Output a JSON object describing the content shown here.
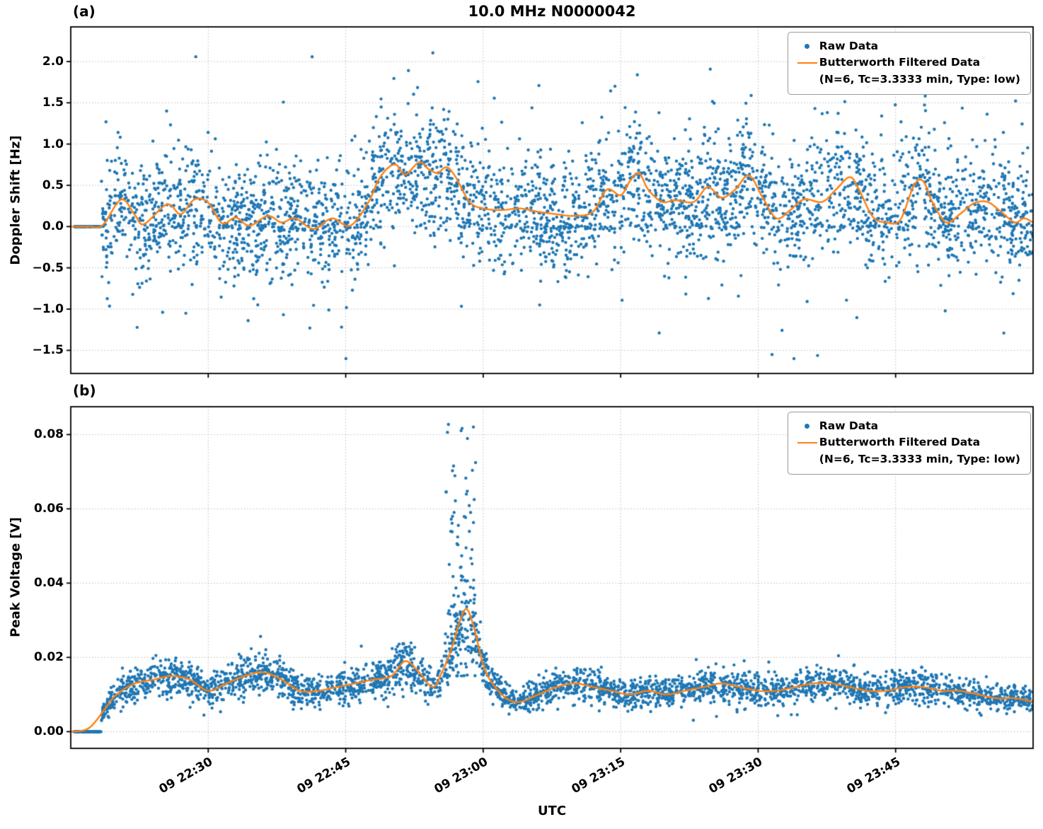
{
  "chart_data": [
    {
      "panel_label": "(a)",
      "type": "scatter+line",
      "title": "10.0 MHz N0000042",
      "ylabel": "Doppler Shift [Hz]",
      "xlabel": "",
      "grid": {
        "visible": true,
        "style": "dotted",
        "color": "#b8b8b8"
      },
      "x_axis": {
        "unit": "UTC time (day 09), minutes after 22:15",
        "xlim": [
          0,
          105
        ],
        "show_tick_labels": false,
        "ticks": [
          {
            "t": 15,
            "label": "09 22:30"
          },
          {
            "t": 30,
            "label": "09 22:45"
          },
          {
            "t": 45,
            "label": "09 23:00"
          },
          {
            "t": 60,
            "label": "09 23:15"
          },
          {
            "t": 75,
            "label": "09 23:30"
          },
          {
            "t": 90,
            "label": "09 23:45"
          }
        ]
      },
      "y_axis": {
        "ylim": [
          -1.78,
          2.42
        ],
        "ticks": [
          {
            "v": 2.0,
            "label": "2.0"
          },
          {
            "v": 1.5,
            "label": "1.5"
          },
          {
            "v": 1.0,
            "label": "1.0"
          },
          {
            "v": 0.5,
            "label": "0.5"
          },
          {
            "v": 0.0,
            "label": "0.0"
          },
          {
            "v": -0.5,
            "label": "−0.5"
          },
          {
            "v": -1.0,
            "label": "−1.0"
          },
          {
            "v": -1.5,
            "label": "−1.5"
          }
        ]
      },
      "legend": {
        "position": "upper right",
        "raw_label": "Raw Data",
        "filtered_label": "Butterworth Filtered Data",
        "filtered_params": "(N=6, Tc=3.3333 min, Type: low)"
      },
      "series": [
        {
          "name": "Raw Data",
          "type": "scatter",
          "color": "#1f77b4",
          "marker": "dot",
          "summary": "~5000 noisy Doppler readings scattered roughly ±0.5–1.5 Hz around the filtered curve; a flat run of exact zeros at the very start (22:15–22:18 UTC); extremes reach about +2.35 Hz and −1.55 Hz",
          "generator": {
            "mode": "band",
            "seed": 42,
            "n": 3800,
            "t_range": [
              3.3,
              105
            ],
            "sigma": 0.34,
            "outlier_frac": 0.1,
            "outlier_sigma": 0.72,
            "zero_frac": 0.05,
            "clip": [
              -1.6,
              2.36
            ],
            "zero_run": {
              "t_range": [
                0.3,
                3.3
              ],
              "n": 80,
              "value": 0.0
            }
          }
        },
        {
          "name": "Butterworth Filtered Data (N=6, Tc=3.3333 min, Type: low)",
          "type": "line",
          "color": "#ff7f0e",
          "width": 2.4,
          "points": [
            [
              0,
              0.0
            ],
            [
              2,
              0.0
            ],
            [
              3.5,
              0.02
            ],
            [
              5.5,
              0.33
            ],
            [
              7,
              0.14
            ],
            [
              8,
              0.03
            ],
            [
              10.5,
              0.27
            ],
            [
              12,
              0.15
            ],
            [
              13.5,
              0.33
            ],
            [
              15,
              0.29
            ],
            [
              16.5,
              0.04
            ],
            [
              18,
              0.11
            ],
            [
              19.5,
              0.01
            ],
            [
              21.5,
              0.13
            ],
            [
              23,
              0.05
            ],
            [
              24.5,
              0.1
            ],
            [
              26.5,
              -0.03
            ],
            [
              28.5,
              0.1
            ],
            [
              30.5,
              0.01
            ],
            [
              32.5,
              0.3
            ],
            [
              33.5,
              0.55
            ],
            [
              34.5,
              0.7
            ],
            [
              35.5,
              0.75
            ],
            [
              36.5,
              0.63
            ],
            [
              38,
              0.78
            ],
            [
              39,
              0.7
            ],
            [
              40,
              0.65
            ],
            [
              41,
              0.72
            ],
            [
              42,
              0.6
            ],
            [
              43.5,
              0.3
            ],
            [
              45,
              0.22
            ],
            [
              47,
              0.2
            ],
            [
              49,
              0.22
            ],
            [
              51,
              0.18
            ],
            [
              53,
              0.15
            ],
            [
              55,
              0.13
            ],
            [
              57,
              0.18
            ],
            [
              58.5,
              0.45
            ],
            [
              60,
              0.38
            ],
            [
              61,
              0.55
            ],
            [
              62,
              0.65
            ],
            [
              63,
              0.45
            ],
            [
              64.5,
              0.3
            ],
            [
              66,
              0.32
            ],
            [
              68,
              0.3
            ],
            [
              69.5,
              0.48
            ],
            [
              71,
              0.35
            ],
            [
              72.5,
              0.45
            ],
            [
              74,
              0.62
            ],
            [
              75.5,
              0.35
            ],
            [
              77,
              0.1
            ],
            [
              78.5,
              0.2
            ],
            [
              80,
              0.33
            ],
            [
              82,
              0.3
            ],
            [
              83.5,
              0.45
            ],
            [
              85,
              0.6
            ],
            [
              86,
              0.45
            ],
            [
              87.5,
              0.12
            ],
            [
              89,
              0.05
            ],
            [
              90.5,
              0.08
            ],
            [
              92,
              0.5
            ],
            [
              93,
              0.55
            ],
            [
              94,
              0.3
            ],
            [
              95.5,
              0.05
            ],
            [
              97,
              0.15
            ],
            [
              98.5,
              0.28
            ],
            [
              100,
              0.3
            ],
            [
              101.5,
              0.18
            ],
            [
              103,
              0.05
            ],
            [
              104,
              0.1
            ],
            [
              105,
              0.05
            ]
          ]
        }
      ]
    },
    {
      "panel_label": "(b)",
      "type": "scatter+line",
      "title": "",
      "ylabel": "Peak Voltage [V]",
      "xlabel": "UTC",
      "grid": {
        "visible": true,
        "style": "dotted",
        "color": "#b8b8b8"
      },
      "x_axis": {
        "unit": "UTC time (day 09), minutes after 22:15",
        "xlim": [
          0,
          105
        ],
        "show_tick_labels": true,
        "ticks": [
          {
            "t": 15,
            "label": "09 22:30"
          },
          {
            "t": 30,
            "label": "09 22:45"
          },
          {
            "t": 45,
            "label": "09 23:00"
          },
          {
            "t": 60,
            "label": "09 23:15"
          },
          {
            "t": 75,
            "label": "09 23:30"
          },
          {
            "t": 90,
            "label": "09 23:45"
          }
        ]
      },
      "y_axis": {
        "ylim": [
          -0.0045,
          0.0875
        ],
        "ticks": [
          {
            "v": 0.08,
            "label": "0.08"
          },
          {
            "v": 0.06,
            "label": "0.06"
          },
          {
            "v": 0.04,
            "label": "0.04"
          },
          {
            "v": 0.02,
            "label": "0.02"
          },
          {
            "v": 0.0,
            "label": "0.00"
          }
        ]
      },
      "legend": {
        "position": "upper right",
        "raw_label": "Raw Data",
        "filtered_label": "Butterworth Filtered Data",
        "filtered_params": "(N=6, Tc=3.3333 min, Type: low)"
      },
      "series": [
        {
          "name": "Raw Data",
          "type": "scatter",
          "color": "#1f77b4",
          "marker": "dot",
          "summary": "Dense band of peak-voltage samples ~0.008–0.018 V tracking the filtered curve; flat run of zeros at the start (22:15–22:18 UTC); large burst just before 23:00 UTC with points up to 0.082 V",
          "generator": {
            "mode": "proportional",
            "seed": 7,
            "n": 3300,
            "t_range": [
              3.3,
              105
            ],
            "rel_sigma": 0.16,
            "abs_sigma": 0.0012,
            "clip": [
              0.003,
              0.085
            ],
            "zero_run": {
              "t_range": [
                0.3,
                3.3
              ],
              "n": 80,
              "value": 0.0
            },
            "spike": {
              "t_range": [
                40.8,
                44.2
              ],
              "n": 95,
              "y_base": 0.015,
              "amp": 0.068,
              "pow": 1.7
            }
          }
        },
        {
          "name": "Butterworth Filtered Data (N=6, Tc=3.3333 min, Type: low)",
          "type": "line",
          "color": "#ff7f0e",
          "width": 2.4,
          "points": [
            [
              0,
              0.0
            ],
            [
              2,
              0.001
            ],
            [
              4,
              0.007
            ],
            [
              5,
              0.01
            ],
            [
              7,
              0.013
            ],
            [
              9,
              0.014
            ],
            [
              11,
              0.015
            ],
            [
              13,
              0.014
            ],
            [
              15,
              0.011
            ],
            [
              17,
              0.013
            ],
            [
              19,
              0.015
            ],
            [
              21,
              0.016
            ],
            [
              23,
              0.014
            ],
            [
              25,
              0.011
            ],
            [
              27,
              0.011
            ],
            [
              29,
              0.012
            ],
            [
              31,
              0.013
            ],
            [
              33,
              0.014
            ],
            [
              35,
              0.015
            ],
            [
              36.5,
              0.019
            ],
            [
              38,
              0.016
            ],
            [
              39.5,
              0.012
            ],
            [
              40.5,
              0.016
            ],
            [
              41.5,
              0.022
            ],
            [
              42.5,
              0.03
            ],
            [
              43.2,
              0.033
            ],
            [
              44,
              0.028
            ],
            [
              45,
              0.018
            ],
            [
              46,
              0.013
            ],
            [
              47.5,
              0.009
            ],
            [
              49,
              0.008
            ],
            [
              51,
              0.01
            ],
            [
              53,
              0.012
            ],
            [
              55,
              0.013
            ],
            [
              57,
              0.012
            ],
            [
              59,
              0.011
            ],
            [
              61,
              0.01
            ],
            [
              63,
              0.011
            ],
            [
              65,
              0.01
            ],
            [
              67,
              0.011
            ],
            [
              69,
              0.012
            ],
            [
              71,
              0.013
            ],
            [
              73,
              0.012
            ],
            [
              75,
              0.011
            ],
            [
              77,
              0.011
            ],
            [
              79,
              0.012
            ],
            [
              81,
              0.013
            ],
            [
              83,
              0.013
            ],
            [
              85,
              0.012
            ],
            [
              87,
              0.011
            ],
            [
              89,
              0.011
            ],
            [
              91,
              0.012
            ],
            [
              93,
              0.012
            ],
            [
              95,
              0.011
            ],
            [
              97,
              0.011
            ],
            [
              99,
              0.01
            ],
            [
              101,
              0.009
            ],
            [
              103,
              0.009
            ],
            [
              105,
              0.008
            ]
          ]
        }
      ]
    }
  ]
}
